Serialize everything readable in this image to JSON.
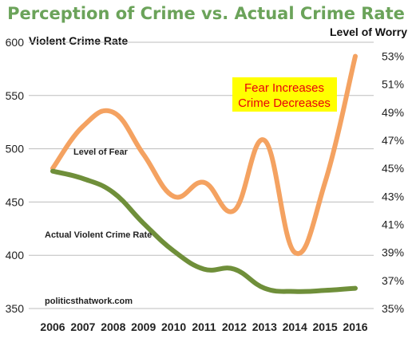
{
  "colors": {
    "title": "#6ba35a",
    "fear": "#f4a261",
    "crime": "#6f8f3a",
    "callout_bg": "#ffff00",
    "callout_text": "#e8000b",
    "grid": "#bdbdbd"
  },
  "chart_data": {
    "type": "line",
    "title": "Perception of Crime vs. Actual Crime Rate",
    "left_axis_label": "Violent Crime Rate",
    "right_axis_label": "Level of Worry",
    "x": [
      "2006",
      "2007",
      "2008",
      "2009",
      "2010",
      "2011",
      "2012",
      "2013",
      "2014",
      "2015",
      "2016"
    ],
    "y_left_ticks": [
      "600",
      "550",
      "500",
      "450",
      "400",
      "350"
    ],
    "y_left_lim": [
      350,
      600
    ],
    "y_right_ticks": [
      "53%",
      "51%",
      "49%",
      "47%",
      "45%",
      "43%",
      "41%",
      "39%",
      "37%",
      "35%"
    ],
    "y_right_lim": [
      35,
      54
    ],
    "series": [
      {
        "name": "Level of Fear",
        "axis": "right",
        "values": [
          45,
          48,
          49,
          46,
          43,
          44,
          42,
          47,
          39,
          44,
          53
        ]
      },
      {
        "name": "Actual Violent Crime Rate",
        "axis": "left",
        "values": [
          479,
          472,
          459,
          430,
          404,
          387,
          387,
          369,
          366,
          367,
          369
        ]
      }
    ],
    "callout": [
      "Fear Increases",
      "Crime Decreases"
    ],
    "watermark": "politicsthatwork.com",
    "grid": "horizontal",
    "legend": "inline labels"
  }
}
